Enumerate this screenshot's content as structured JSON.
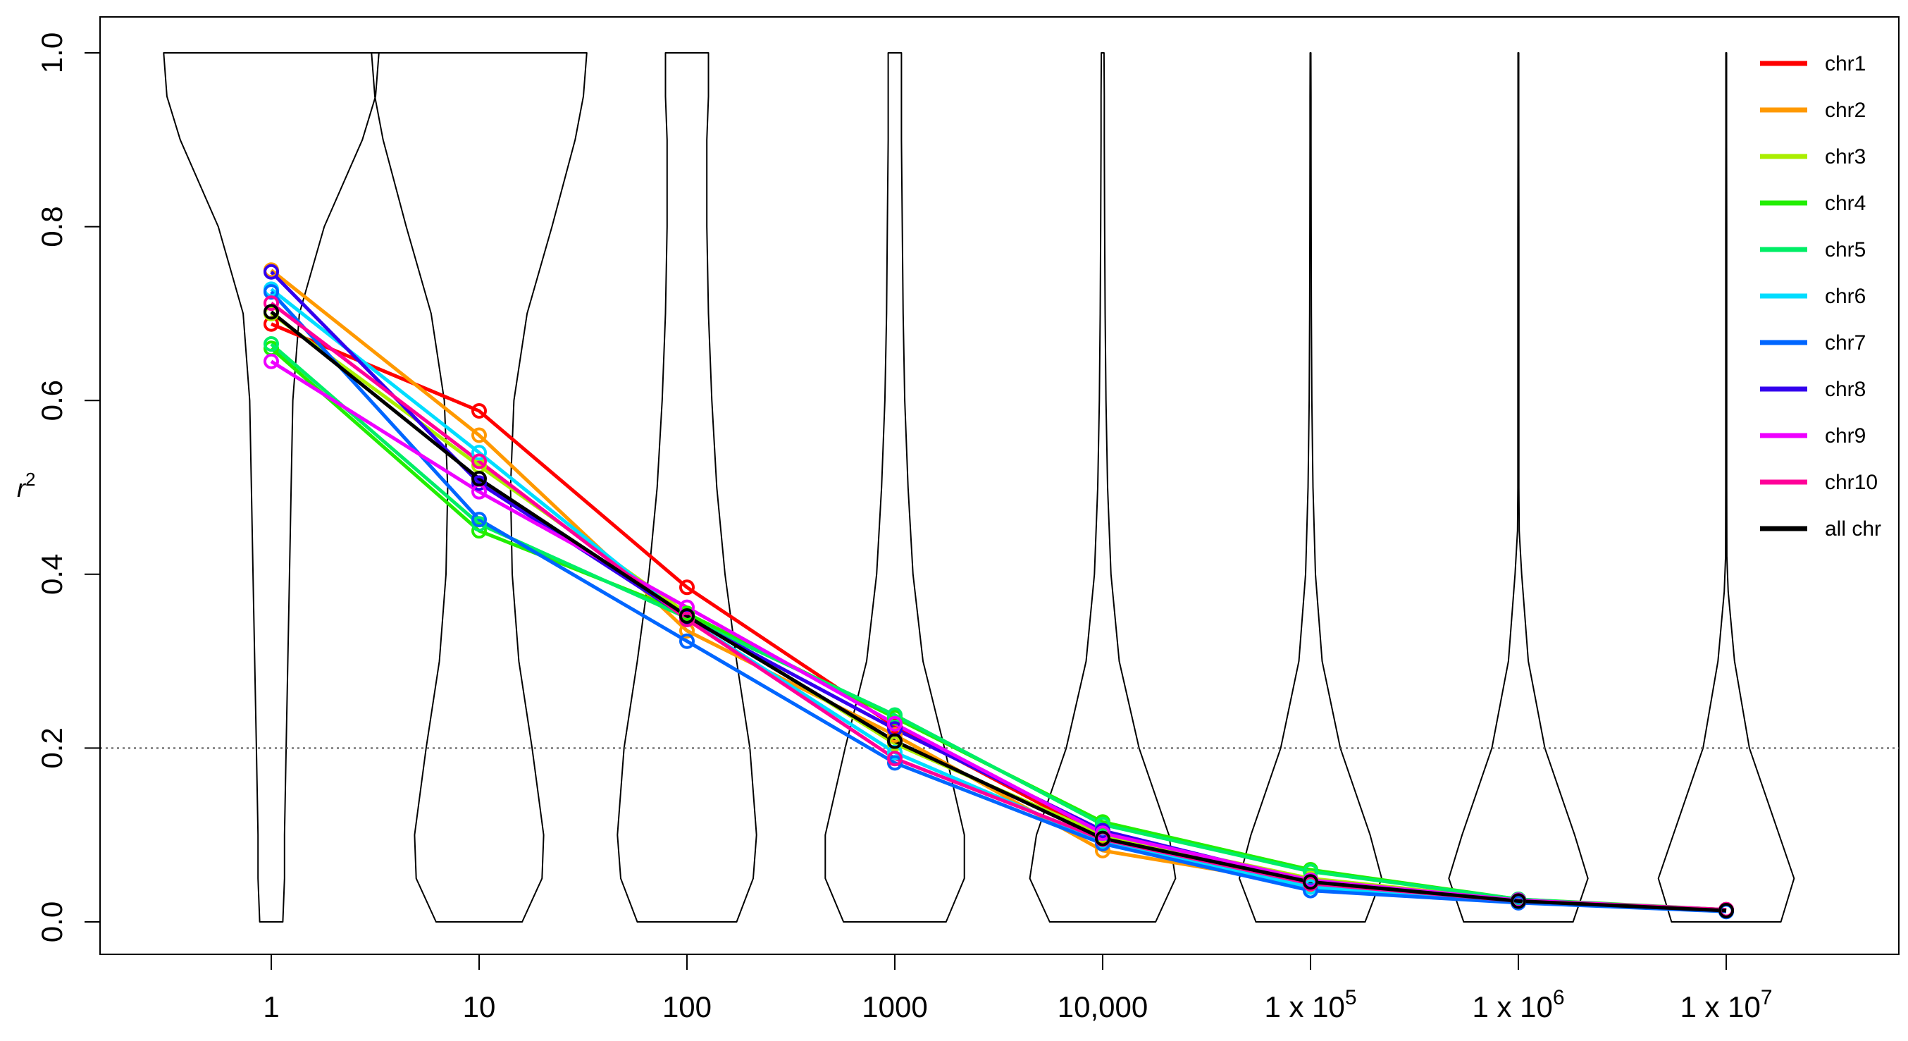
{
  "chart_data": {
    "type": "line",
    "x_tick_labels": [
      {
        "base": "1",
        "exp": ""
      },
      {
        "base": "10",
        "exp": ""
      },
      {
        "base": "100",
        "exp": ""
      },
      {
        "base": "1000",
        "exp": ""
      },
      {
        "base": "10,000",
        "exp": ""
      },
      {
        "base": "1 x 10",
        "exp": "5"
      },
      {
        "base": "1 x 10",
        "exp": "6"
      },
      {
        "base": "1 x 10",
        "exp": "7"
      }
    ],
    "x": [
      1,
      10,
      100,
      1000,
      10000,
      100000,
      1000000,
      10000000
    ],
    "xscale": "log",
    "y_ticks": [
      "0.0",
      "0.2",
      "0.4",
      "0.6",
      "0.8",
      "1.0"
    ],
    "y_tick_values": [
      0,
      0.2,
      0.4,
      0.6,
      0.8,
      1.0
    ],
    "ylabel": "r",
    "ylabel_exp": "2",
    "ylim": [
      0,
      1.04
    ],
    "reference_line": 0.2,
    "legend_position": "top-right",
    "violins": [
      {
        "x": 1,
        "profile": [
          [
            0.0,
            0.07
          ],
          [
            0.05,
            0.08
          ],
          [
            0.1,
            0.08
          ],
          [
            0.2,
            0.09
          ],
          [
            0.3,
            0.1
          ],
          [
            0.4,
            0.11
          ],
          [
            0.5,
            0.12
          ],
          [
            0.6,
            0.13
          ],
          [
            0.7,
            0.17
          ],
          [
            0.8,
            0.32
          ],
          [
            0.9,
            0.55
          ],
          [
            0.95,
            0.63
          ],
          [
            1.0,
            0.65
          ]
        ]
      },
      {
        "x": 10,
        "profile": [
          [
            0.0,
            0.26
          ],
          [
            0.05,
            0.38
          ],
          [
            0.1,
            0.39
          ],
          [
            0.2,
            0.32
          ],
          [
            0.3,
            0.24
          ],
          [
            0.4,
            0.2
          ],
          [
            0.5,
            0.19
          ],
          [
            0.6,
            0.21
          ],
          [
            0.7,
            0.29
          ],
          [
            0.8,
            0.44
          ],
          [
            0.9,
            0.58
          ],
          [
            0.95,
            0.63
          ],
          [
            1.0,
            0.65
          ]
        ]
      },
      {
        "x": 100,
        "profile": [
          [
            0.0,
            0.3
          ],
          [
            0.05,
            0.4
          ],
          [
            0.1,
            0.42
          ],
          [
            0.2,
            0.38
          ],
          [
            0.3,
            0.3
          ],
          [
            0.4,
            0.23
          ],
          [
            0.5,
            0.18
          ],
          [
            0.6,
            0.15
          ],
          [
            0.7,
            0.13
          ],
          [
            0.8,
            0.12
          ],
          [
            0.9,
            0.12
          ],
          [
            0.95,
            0.13
          ],
          [
            1.0,
            0.13
          ]
        ]
      },
      {
        "x": 1000,
        "profile": [
          [
            0.0,
            0.31
          ],
          [
            0.05,
            0.42
          ],
          [
            0.1,
            0.42
          ],
          [
            0.2,
            0.3
          ],
          [
            0.3,
            0.17
          ],
          [
            0.4,
            0.11
          ],
          [
            0.5,
            0.08
          ],
          [
            0.6,
            0.06
          ],
          [
            0.7,
            0.05
          ],
          [
            0.8,
            0.045
          ],
          [
            0.9,
            0.04
          ],
          [
            0.95,
            0.04
          ],
          [
            1.0,
            0.04
          ]
        ]
      },
      {
        "x": 10000,
        "profile": [
          [
            0.0,
            0.32
          ],
          [
            0.05,
            0.44
          ],
          [
            0.1,
            0.4
          ],
          [
            0.2,
            0.22
          ],
          [
            0.3,
            0.1
          ],
          [
            0.4,
            0.05
          ],
          [
            0.5,
            0.03
          ],
          [
            0.6,
            0.02
          ],
          [
            0.7,
            0.015
          ],
          [
            0.8,
            0.012
          ],
          [
            0.9,
            0.01
          ],
          [
            0.95,
            0.01
          ],
          [
            1.0,
            0.008
          ]
        ]
      },
      {
        "x": 100000,
        "profile": [
          [
            0.0,
            0.33
          ],
          [
            0.05,
            0.43
          ],
          [
            0.1,
            0.36
          ],
          [
            0.2,
            0.18
          ],
          [
            0.3,
            0.07
          ],
          [
            0.4,
            0.03
          ],
          [
            0.5,
            0.015
          ],
          [
            0.6,
            0.008
          ],
          [
            0.7,
            0.005
          ],
          [
            0.8,
            0.004
          ],
          [
            0.9,
            0.003
          ],
          [
            0.95,
            0.003
          ],
          [
            1.0,
            0.002
          ]
        ]
      },
      {
        "x": 1000000,
        "profile": [
          [
            0.0,
            0.33
          ],
          [
            0.05,
            0.42
          ],
          [
            0.1,
            0.34
          ],
          [
            0.2,
            0.16
          ],
          [
            0.3,
            0.06
          ],
          [
            0.4,
            0.02
          ],
          [
            0.45,
            0.005
          ],
          [
            0.5,
            0.003
          ],
          [
            0.6,
            0.003
          ],
          [
            0.7,
            0.003
          ],
          [
            0.8,
            0.003
          ],
          [
            0.9,
            0.002
          ],
          [
            1.0,
            0.002
          ]
        ]
      },
      {
        "x": 10000000,
        "profile": [
          [
            0.0,
            0.33
          ],
          [
            0.05,
            0.41
          ],
          [
            0.1,
            0.32
          ],
          [
            0.2,
            0.14
          ],
          [
            0.3,
            0.05
          ],
          [
            0.38,
            0.012
          ],
          [
            0.42,
            0.004
          ],
          [
            0.5,
            0.003
          ],
          [
            0.6,
            0.003
          ],
          [
            0.7,
            0.003
          ],
          [
            0.8,
            0.003
          ],
          [
            0.9,
            0.002
          ],
          [
            1.0,
            0.002
          ]
        ]
      }
    ],
    "series": [
      {
        "name": "chr1",
        "color": "#ff0000",
        "values": [
          0.688,
          0.588,
          0.385,
          0.225,
          0.098,
          0.048,
          0.025,
          0.014
        ]
      },
      {
        "name": "chr2",
        "color": "#ff9900",
        "values": [
          0.75,
          0.56,
          0.335,
          0.215,
          0.082,
          0.042,
          0.024,
          0.013
        ]
      },
      {
        "name": "chr3",
        "color": "#aaee00",
        "values": [
          0.7,
          0.525,
          0.355,
          0.205,
          0.1,
          0.05,
          0.025,
          0.013
        ]
      },
      {
        "name": "chr4",
        "color": "#22ee00",
        "values": [
          0.66,
          0.45,
          0.355,
          0.235,
          0.115,
          0.06,
          0.026,
          0.014
        ]
      },
      {
        "name": "chr5",
        "color": "#00ee66",
        "values": [
          0.665,
          0.458,
          0.35,
          0.238,
          0.112,
          0.058,
          0.026,
          0.013
        ]
      },
      {
        "name": "chr6",
        "color": "#00ddff",
        "values": [
          0.728,
          0.54,
          0.348,
          0.195,
          0.092,
          0.04,
          0.023,
          0.012
        ]
      },
      {
        "name": "chr7",
        "color": "#0066ff",
        "values": [
          0.725,
          0.463,
          0.323,
          0.183,
          0.09,
          0.036,
          0.022,
          0.012
        ]
      },
      {
        "name": "chr8",
        "color": "#3300ee",
        "values": [
          0.748,
          0.505,
          0.35,
          0.222,
          0.105,
          0.046,
          0.024,
          0.013
        ]
      },
      {
        "name": "chr9",
        "color": "#ee00ff",
        "values": [
          0.645,
          0.495,
          0.362,
          0.228,
          0.102,
          0.048,
          0.025,
          0.014
        ]
      },
      {
        "name": "chr10",
        "color": "#ff0099",
        "values": [
          0.712,
          0.53,
          0.348,
          0.188,
          0.095,
          0.044,
          0.024,
          0.014
        ]
      },
      {
        "name": "all chr",
        "color": "#000000",
        "values": [
          0.702,
          0.51,
          0.352,
          0.208,
          0.096,
          0.046,
          0.024,
          0.013
        ]
      }
    ]
  }
}
